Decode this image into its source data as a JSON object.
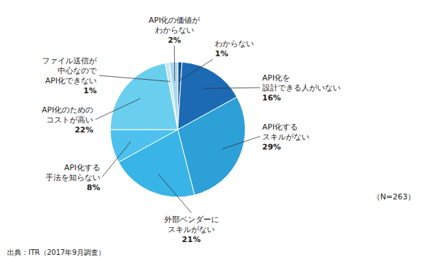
{
  "chart_data": {
    "type": "pie",
    "categories": [
      "わからない",
      "API化を\n設計できる人がいない",
      "API化する\nスキルがない",
      "外部ベンダーに\nスキルがない",
      "API化する\n手法を知らない",
      "API化のための\nコストが高い",
      "ファイル送信が\n中心なので\nAPI化できない",
      "API化の価値が\nわからない"
    ],
    "values": [
      1,
      16,
      29,
      21,
      8,
      22,
      1,
      2
    ],
    "value_labels": [
      "1%",
      "16%",
      "29%",
      "21%",
      "8%",
      "22%",
      "1%",
      "2%"
    ],
    "data_labels": true,
    "colors": [
      "#1a5296",
      "#1c6ab4",
      "#2ea0d8",
      "#39b4e6",
      "#4dc0ee",
      "#6acfee",
      "#c4e4f6",
      "#a8d8f0"
    ],
    "annotations": [
      "（N=263）",
      "出典：ITR（2017年9月調査）"
    ]
  }
}
